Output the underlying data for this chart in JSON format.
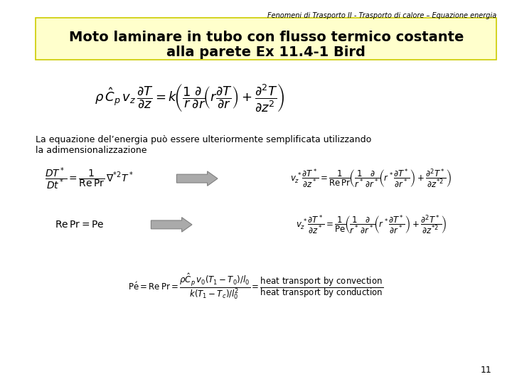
{
  "header_text": "Fenomeni di Trasporto II - Trasporto di calore – Equazione energia",
  "title_line1": "Moto laminare in tubo con flusso termico costante",
  "title_line2": "alla parete Ex 11.4-1 Bird",
  "title_bg_color": "#ffffcc",
  "title_border_color": "#cccc00",
  "body_bg_color": "#ffffff",
  "page_number": "11",
  "body_text_line1": "La equazione del’energia può essere ulteriormente semplificata utilizzando",
  "body_text_line2": "la adimensionalizzazione",
  "arrow_color": "#aaaaaa",
  "font_size_header": 7,
  "font_size_title": 14,
  "font_size_body": 9,
  "font_size_eq_large": 13,
  "font_size_eq_med": 10,
  "font_size_eq_small": 8.5,
  "font_size_page": 9
}
